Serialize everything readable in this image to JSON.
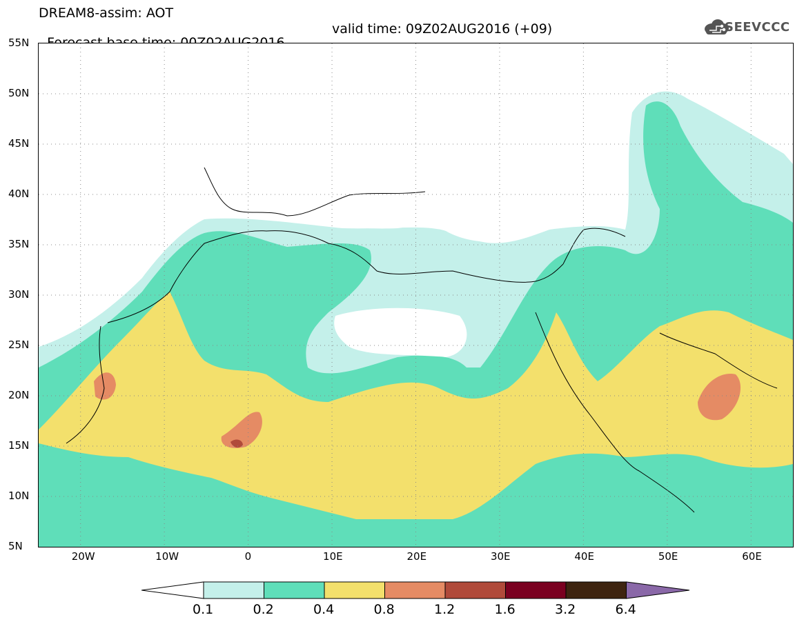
{
  "header": {
    "title_line1": "DREAM8-assim: AOT",
    "base_time": "Forecast base time: 00Z02AUG2016",
    "valid_time": "valid time: 09Z02AUG2016 (+09)"
  },
  "logo": {
    "text": "SEEVCCC",
    "icon": "cloud-icon"
  },
  "map": {
    "lat_labels": [
      "55N",
      "50N",
      "45N",
      "40N",
      "35N",
      "30N",
      "25N",
      "20N",
      "15N",
      "10N",
      "5N"
    ],
    "lon_labels": [
      "20W",
      "10W",
      "0",
      "10E",
      "20E",
      "30E",
      "40E",
      "50E",
      "60E"
    ],
    "lon_range": [
      -25,
      65
    ],
    "lat_range": [
      5,
      55
    ],
    "grid": "dotted"
  },
  "legend": {
    "levels": [
      "0.1",
      "0.2",
      "0.4",
      "0.8",
      "1.2",
      "1.6",
      "3.2",
      "6.4"
    ],
    "colors": [
      "#ffffff",
      "#c4f0ea",
      "#5fdeb9",
      "#f3e06c",
      "#e58b64",
      "#b04a3a",
      "#7a0020",
      "#3e2410",
      "#8a68a8"
    ]
  }
}
